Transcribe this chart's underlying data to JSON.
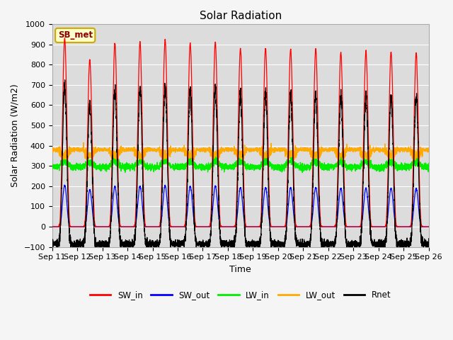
{
  "title": "Solar Radiation",
  "xlabel": "Time",
  "ylabel": "Solar Radiation (W/m2)",
  "ylim": [
    -100,
    1000
  ],
  "annotation": "SB_met",
  "colors": {
    "SW_in": "#ff0000",
    "SW_out": "#0000ff",
    "LW_in": "#00ee00",
    "LW_out": "#ffaa00",
    "Rnet": "#000000"
  },
  "x_tick_labels": [
    "Sep 11",
    "Sep 12",
    "Sep 13",
    "Sep 14",
    "Sep 15",
    "Sep 16",
    "Sep 17",
    "Sep 18",
    "Sep 19",
    "Sep 20",
    "Sep 21",
    "Sep 22",
    "Sep 23",
    "Sep 24",
    "Sep 25",
    "Sep 26"
  ],
  "background_color": "#dcdcdc",
  "grid_color": "#ffffff",
  "n_days": 15,
  "points_per_day": 288,
  "sw_peaks": [
    930,
    825,
    905,
    910,
    920,
    905,
    910,
    880,
    880,
    875,
    878,
    860,
    865,
    862,
    858
  ]
}
